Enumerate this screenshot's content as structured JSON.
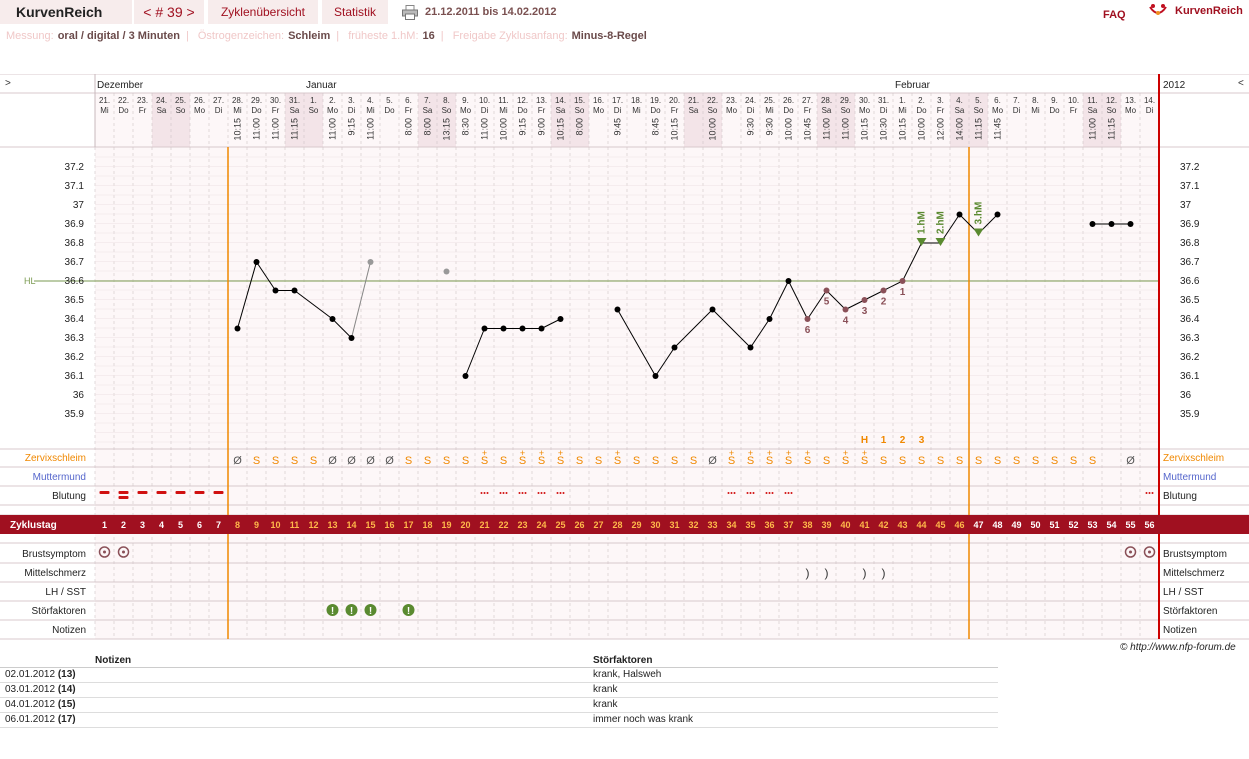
{
  "header": {
    "app_title": "KurvenReich",
    "cycle_nav": "< # 39 >",
    "tabs": [
      "Zyklenübersicht",
      "Statistik"
    ],
    "date_range": "21.12.2011 bis 14.02.2012",
    "faq": "FAQ",
    "brand": "KurvenReich"
  },
  "meta": [
    {
      "label": "Messung:",
      "value": "oral / digital / 3 Minuten"
    },
    {
      "label": "Östrogenzeichen:",
      "value": "Schleim"
    },
    {
      "label": "früheste 1.hM:",
      "value": "16"
    },
    {
      "label": "Freigabe Zyklusanfang:",
      "value": "Minus-8-Regel"
    }
  ],
  "colors": {
    "accent": "#a01020",
    "orange": "#f08800",
    "green": "#5a8a30",
    "weekend": "#f3e4e8",
    "line": "#000000"
  },
  "chart_data": {
    "type": "line",
    "year_label": "2012",
    "months": [
      {
        "name": "Dezember",
        "day_index": 0
      },
      {
        "name": "Januar",
        "day_index": 11
      },
      {
        "name": "Februar",
        "day_index": 42
      }
    ],
    "days": [
      {
        "d": "21.",
        "w": "Mi",
        "t": ""
      },
      {
        "d": "22.",
        "w": "Do",
        "t": ""
      },
      {
        "d": "23.",
        "w": "Fr",
        "t": ""
      },
      {
        "d": "24.",
        "w": "Sa",
        "t": ""
      },
      {
        "d": "25.",
        "w": "So",
        "t": ""
      },
      {
        "d": "26.",
        "w": "Mo",
        "t": ""
      },
      {
        "d": "27.",
        "w": "Di",
        "t": ""
      },
      {
        "d": "28.",
        "w": "Mi",
        "t": "10:15"
      },
      {
        "d": "29.",
        "w": "Do",
        "t": "11:00"
      },
      {
        "d": "30.",
        "w": "Fr",
        "t": "11:00"
      },
      {
        "d": "31.",
        "w": "Sa",
        "t": "11:15"
      },
      {
        "d": "1.",
        "w": "So",
        "t": ""
      },
      {
        "d": "2.",
        "w": "Mo",
        "t": "11:00"
      },
      {
        "d": "3.",
        "w": "Di",
        "t": "9:15"
      },
      {
        "d": "4.",
        "w": "Mi",
        "t": "11:00"
      },
      {
        "d": "5.",
        "w": "Do",
        "t": ""
      },
      {
        "d": "6.",
        "w": "Fr",
        "t": "8:00"
      },
      {
        "d": "7.",
        "w": "Sa",
        "t": "8:00"
      },
      {
        "d": "8.",
        "w": "So",
        "t": "13:15"
      },
      {
        "d": "9.",
        "w": "Mo",
        "t": "8:30"
      },
      {
        "d": "10.",
        "w": "Di",
        "t": "11:00"
      },
      {
        "d": "11.",
        "w": "Mi",
        "t": "10:00"
      },
      {
        "d": "12.",
        "w": "Do",
        "t": "9:15"
      },
      {
        "d": "13.",
        "w": "Fr",
        "t": "9:00"
      },
      {
        "d": "14.",
        "w": "Sa",
        "t": "10:15"
      },
      {
        "d": "15.",
        "w": "So",
        "t": "8:00"
      },
      {
        "d": "16.",
        "w": "Mo",
        "t": ""
      },
      {
        "d": "17.",
        "w": "Di",
        "t": "9:45"
      },
      {
        "d": "18.",
        "w": "Mi",
        "t": ""
      },
      {
        "d": "19.",
        "w": "Do",
        "t": "8:45"
      },
      {
        "d": "20.",
        "w": "Fr",
        "t": "10:15"
      },
      {
        "d": "21.",
        "w": "Sa",
        "t": ""
      },
      {
        "d": "22.",
        "w": "So",
        "t": "10:00"
      },
      {
        "d": "23.",
        "w": "Mo",
        "t": ""
      },
      {
        "d": "24.",
        "w": "Di",
        "t": "9:30"
      },
      {
        "d": "25.",
        "w": "Mi",
        "t": "9:30"
      },
      {
        "d": "26.",
        "w": "Do",
        "t": "10:00"
      },
      {
        "d": "27.",
        "w": "Fr",
        "t": "10:45"
      },
      {
        "d": "28.",
        "w": "Sa",
        "t": "11:00"
      },
      {
        "d": "29.",
        "w": "So",
        "t": "11:00"
      },
      {
        "d": "30.",
        "w": "Mo",
        "t": "10:15"
      },
      {
        "d": "31.",
        "w": "Di",
        "t": "10:30"
      },
      {
        "d": "1.",
        "w": "Mi",
        "t": "10:15"
      },
      {
        "d": "2.",
        "w": "Do",
        "t": "10:00"
      },
      {
        "d": "3.",
        "w": "Fr",
        "t": "12:00"
      },
      {
        "d": "4.",
        "w": "Sa",
        "t": "14:00"
      },
      {
        "d": "5.",
        "w": "So",
        "t": "11:15"
      },
      {
        "d": "6.",
        "w": "Mo",
        "t": "11:45"
      },
      {
        "d": "7.",
        "w": "Di",
        "t": ""
      },
      {
        "d": "8.",
        "w": "Mi",
        "t": ""
      },
      {
        "d": "9.",
        "w": "Do",
        "t": ""
      },
      {
        "d": "10.",
        "w": "Fr",
        "t": ""
      },
      {
        "d": "11.",
        "w": "Sa",
        "t": "11:00"
      },
      {
        "d": "12.",
        "w": "So",
        "t": "11:15"
      },
      {
        "d": "13.",
        "w": "Mo",
        "t": ""
      },
      {
        "d": "14.",
        "w": "Di",
        "t": ""
      }
    ],
    "y_ticks": [
      "37.2",
      "37.1",
      "37",
      "36.9",
      "36.8",
      "36.7",
      "36.6",
      "36.5",
      "36.4",
      "36.3",
      "36.2",
      "36.1",
      "36",
      "35.9"
    ],
    "ylim": [
      35.9,
      37.2
    ],
    "hl_label": "HL",
    "hl_value": 36.6,
    "cycle_start_day": 8,
    "cycle_end_day": 47,
    "temperatures": [
      {
        "day": 8,
        "v": 36.35
      },
      {
        "day": 9,
        "v": 36.7
      },
      {
        "day": 10,
        "v": 36.55
      },
      {
        "day": 11,
        "v": 36.55
      },
      {
        "day": 13,
        "v": 36.4
      },
      {
        "day": 14,
        "v": 36.3
      },
      {
        "day": 15,
        "v": 36.7,
        "ex": true
      },
      {
        "day": 19,
        "v": 36.65,
        "ex": true
      },
      {
        "day": 20,
        "v": 36.1
      },
      {
        "day": 21,
        "v": 36.35
      },
      {
        "day": 22,
        "v": 36.35
      },
      {
        "day": 23,
        "v": 36.35
      },
      {
        "day": 24,
        "v": 36.35
      },
      {
        "day": 25,
        "v": 36.4
      },
      {
        "day": 28,
        "v": 36.45
      },
      {
        "day": 30,
        "v": 36.1
      },
      {
        "day": 31,
        "v": 36.25
      },
      {
        "day": 33,
        "v": 36.45
      },
      {
        "day": 35,
        "v": 36.25
      },
      {
        "day": 36,
        "v": 36.4
      },
      {
        "day": 37,
        "v": 36.6
      },
      {
        "day": 38,
        "v": 36.4,
        "lbl": "6"
      },
      {
        "day": 39,
        "v": 36.55,
        "lbl": "5"
      },
      {
        "day": 40,
        "v": 36.45,
        "lbl": "4"
      },
      {
        "day": 41,
        "v": 36.5,
        "lbl": "3"
      },
      {
        "day": 42,
        "v": 36.55,
        "lbl": "2"
      },
      {
        "day": 43,
        "v": 36.6,
        "lbl": "1"
      },
      {
        "day": 44,
        "v": 36.8,
        "hm": "1.hM"
      },
      {
        "day": 45,
        "v": 36.8,
        "hm": "2.hM"
      },
      {
        "day": 46,
        "v": 36.95
      },
      {
        "day": 47,
        "v": 36.85,
        "hm": "3.hM"
      },
      {
        "day": 48,
        "v": 36.95
      },
      {
        "day": 53,
        "v": 36.9
      },
      {
        "day": 54,
        "v": 36.9
      },
      {
        "day": 55,
        "v": 36.9
      }
    ],
    "h_labels": [
      {
        "day": 41,
        "t": "H"
      },
      {
        "day": 42,
        "t": "1"
      },
      {
        "day": 43,
        "t": "2"
      },
      {
        "day": 44,
        "t": "3"
      }
    ],
    "mucus": [
      {
        "day": 8,
        "s": "Ø"
      },
      {
        "day": 9,
        "s": "S"
      },
      {
        "day": 10,
        "s": "S"
      },
      {
        "day": 11,
        "s": "S"
      },
      {
        "day": 12,
        "s": "S"
      },
      {
        "day": 13,
        "s": "Ø"
      },
      {
        "day": 14,
        "s": "Ø"
      },
      {
        "day": 15,
        "s": "Ø"
      },
      {
        "day": 16,
        "s": "Ø"
      },
      {
        "day": 17,
        "s": "S"
      },
      {
        "day": 18,
        "s": "S"
      },
      {
        "day": 19,
        "s": "S"
      },
      {
        "day": 20,
        "s": "S"
      },
      {
        "day": 21,
        "s": "S",
        "p": true
      },
      {
        "day": 22,
        "s": "S"
      },
      {
        "day": 23,
        "s": "S",
        "p": true
      },
      {
        "day": 24,
        "s": "S",
        "p": true
      },
      {
        "day": 25,
        "s": "S",
        "p": true
      },
      {
        "day": 26,
        "s": "S"
      },
      {
        "day": 27,
        "s": "S"
      },
      {
        "day": 28,
        "s": "S",
        "p": true
      },
      {
        "day": 29,
        "s": "S"
      },
      {
        "day": 30,
        "s": "S"
      },
      {
        "day": 31,
        "s": "S"
      },
      {
        "day": 32,
        "s": "S"
      },
      {
        "day": 33,
        "s": "Ø"
      },
      {
        "day": 34,
        "s": "S",
        "p": true
      },
      {
        "day": 35,
        "s": "S",
        "p": true
      },
      {
        "day": 36,
        "s": "S",
        "p": true
      },
      {
        "day": 37,
        "s": "S",
        "p": true
      },
      {
        "day": 38,
        "s": "S",
        "p": true
      },
      {
        "day": 39,
        "s": "S"
      },
      {
        "day": 40,
        "s": "S",
        "p": true
      },
      {
        "day": 41,
        "s": "S",
        "p": true
      },
      {
        "day": 42,
        "s": "S"
      },
      {
        "day": 43,
        "s": "S"
      },
      {
        "day": 44,
        "s": "S"
      },
      {
        "day": 45,
        "s": "S"
      },
      {
        "day": 46,
        "s": "S"
      },
      {
        "day": 47,
        "s": "S"
      },
      {
        "day": 48,
        "s": "S"
      },
      {
        "day": 49,
        "s": "S"
      },
      {
        "day": 50,
        "s": "S"
      },
      {
        "day": 51,
        "s": "S"
      },
      {
        "day": 52,
        "s": "S"
      },
      {
        "day": 53,
        "s": "S"
      },
      {
        "day": 55,
        "s": "Ø"
      }
    ],
    "bleeding": [
      {
        "day": 1,
        "k": "heavy"
      },
      {
        "day": 2,
        "k": "heavy2"
      },
      {
        "day": 3,
        "k": "heavy"
      },
      {
        "day": 4,
        "k": "heavy"
      },
      {
        "day": 5,
        "k": "heavy"
      },
      {
        "day": 6,
        "k": "heavy"
      },
      {
        "day": 7,
        "k": "heavy"
      },
      {
        "day": 21,
        "k": "spot"
      },
      {
        "day": 22,
        "k": "spot"
      },
      {
        "day": 23,
        "k": "spot"
      },
      {
        "day": 24,
        "k": "spot"
      },
      {
        "day": 25,
        "k": "spot"
      },
      {
        "day": 34,
        "k": "spot"
      },
      {
        "day": 35,
        "k": "spot"
      },
      {
        "day": 36,
        "k": "spot"
      },
      {
        "day": 37,
        "k": "spot"
      },
      {
        "day": 56,
        "k": "spot"
      }
    ],
    "cycle_days": [
      "1",
      "2",
      "3",
      "4",
      "5",
      "6",
      "7",
      "8",
      "9",
      "10",
      "11",
      "12",
      "13",
      "14",
      "15",
      "16",
      "17",
      "18",
      "19",
      "20",
      "21",
      "22",
      "23",
      "24",
      "25",
      "26",
      "27",
      "28",
      "29",
      "30",
      "31",
      "32",
      "33",
      "34",
      "35",
      "36",
      "37",
      "38",
      "39",
      "40",
      "41",
      "42",
      "43",
      "44",
      "45",
      "46",
      "47",
      "48",
      "49",
      "50",
      "51",
      "52",
      "53",
      "54",
      "55",
      "56"
    ],
    "breast_days": [
      1,
      2,
      55,
      56
    ],
    "mittelschmerz_days": [
      38,
      39,
      41,
      42
    ],
    "disturbance_days": [
      13,
      14,
      15,
      17
    ],
    "rows": {
      "mucus": "Zervixschleim",
      "cervix": "Muttermund",
      "bleeding": "Blutung",
      "cycle": "Zyklustag",
      "breast": "Brustsymptom",
      "mittel": "Mittelschmerz",
      "lh": "LH / SST",
      "stoer": "Störfaktoren",
      "notes": "Notizen"
    }
  },
  "footer": {
    "copyright": "© http://www.nfp-forum.de",
    "table_headers": [
      "",
      "Notizen",
      "Störfaktoren"
    ],
    "table_rows": [
      {
        "date": "02.01.2012",
        "cday": "(13)",
        "note": "",
        "stoer": "krank, Halsweh"
      },
      {
        "date": "03.01.2012",
        "cday": "(14)",
        "note": "",
        "stoer": "krank"
      },
      {
        "date": "04.01.2012",
        "cday": "(15)",
        "note": "",
        "stoer": "krank"
      },
      {
        "date": "06.01.2012",
        "cday": "(17)",
        "note": "",
        "stoer": "immer noch was krank"
      }
    ]
  }
}
